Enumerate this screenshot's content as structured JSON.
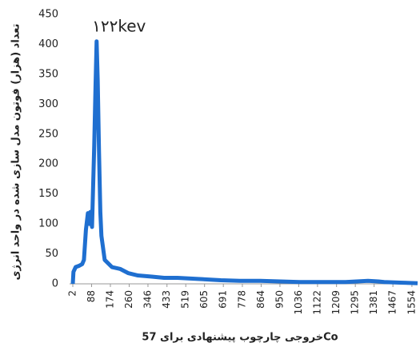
{
  "chart_data": {
    "type": "line",
    "y_label": "تعداد (هزار) فوتون مدل سازی شده در واحد انرژی",
    "x_label": "خروجی چارچوب پیشنهادی برای 57Co",
    "annotation": "١٢٢kev",
    "x": [
      2,
      5,
      15,
      30,
      45,
      53,
      62,
      71,
      78,
      82,
      90,
      100,
      106,
      111,
      116,
      122,
      128,
      133,
      148,
      181,
      218,
      255,
      300,
      364,
      420,
      481,
      584,
      680,
      767,
      860,
      950,
      1040,
      1133,
      1250,
      1353,
      1400,
      1427,
      1500,
      1580
    ],
    "series": [
      {
        "name": "57Co",
        "color": "#1f6fd0",
        "values": [
          0,
          20,
          28,
          30,
          33,
          40,
          90,
          118,
          100,
          120,
          95,
          230,
          330,
          405,
          340,
          220,
          120,
          80,
          40,
          28,
          25,
          18,
          14,
          12,
          10,
          10,
          8,
          6,
          5,
          5,
          4,
          3,
          3,
          3,
          5,
          4,
          3,
          2,
          1
        ]
      }
    ],
    "xlim": [
      2,
      1580
    ],
    "xticks": [
      2,
      88,
      174,
      260,
      346,
      433,
      519,
      605,
      691,
      778,
      864,
      950,
      1036,
      1122,
      1209,
      1295,
      1381,
      1467,
      1554
    ],
    "ylim": [
      0,
      450
    ],
    "yticks": [
      0,
      50,
      100,
      150,
      200,
      250,
      300,
      350,
      400,
      450
    ],
    "grid": false
  }
}
